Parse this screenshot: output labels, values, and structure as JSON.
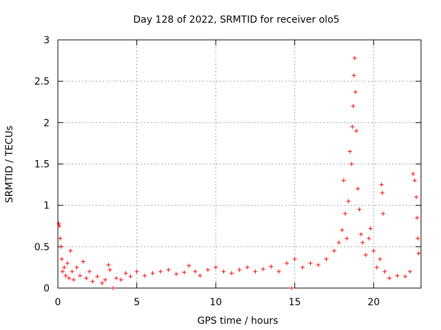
{
  "chart_data": {
    "type": "scatter",
    "title": "Day 128 of 2022, SRMTID for receiver olo5",
    "xlabel": "GPS time / hours",
    "ylabel": "SRMTID / TECUs",
    "xlim": [
      0,
      23
    ],
    "ylim": [
      0,
      3
    ],
    "xticks": [
      0,
      5,
      10,
      15,
      20
    ],
    "xtick_labels": [
      "0",
      "5",
      "10",
      "15",
      "20"
    ],
    "yticks": [
      0,
      0.5,
      1,
      1.5,
      2,
      2.5,
      3
    ],
    "ytick_labels": [
      "0",
      "0.5",
      "1",
      "1.5",
      "2",
      "2.5",
      "3"
    ],
    "grid": true,
    "marker": "+",
    "series": [
      {
        "name": "SRMTID",
        "color": "#ff0000",
        "points": [
          [
            0.05,
            0.78
          ],
          [
            0.1,
            0.75
          ],
          [
            0.15,
            0.6
          ],
          [
            0.2,
            0.5
          ],
          [
            0.25,
            0.35
          ],
          [
            0.3,
            0.2
          ],
          [
            0.4,
            0.25
          ],
          [
            0.5,
            0.15
          ],
          [
            0.6,
            0.3
          ],
          [
            0.7,
            0.12
          ],
          [
            0.8,
            0.45
          ],
          [
            0.9,
            0.2
          ],
          [
            1.0,
            0.1
          ],
          [
            1.2,
            0.25
          ],
          [
            1.4,
            0.15
          ],
          [
            1.6,
            0.32
          ],
          [
            1.8,
            0.12
          ],
          [
            2.0,
            0.2
          ],
          [
            2.2,
            0.08
          ],
          [
            2.5,
            0.14
          ],
          [
            2.8,
            0.06
          ],
          [
            3.0,
            0.1
          ],
          [
            3.2,
            0.28
          ],
          [
            3.3,
            0.22
          ],
          [
            3.5,
            0.0
          ],
          [
            3.7,
            0.12
          ],
          [
            4.0,
            0.1
          ],
          [
            4.3,
            0.18
          ],
          [
            4.6,
            0.14
          ],
          [
            5.0,
            0.2
          ],
          [
            5.5,
            0.15
          ],
          [
            6.0,
            0.18
          ],
          [
            6.5,
            0.2
          ],
          [
            7.0,
            0.22
          ],
          [
            7.5,
            0.17
          ],
          [
            8.0,
            0.19
          ],
          [
            8.3,
            0.27
          ],
          [
            8.7,
            0.2
          ],
          [
            9.0,
            0.15
          ],
          [
            9.5,
            0.22
          ],
          [
            10.0,
            0.25
          ],
          [
            10.5,
            0.2
          ],
          [
            11.0,
            0.18
          ],
          [
            11.5,
            0.22
          ],
          [
            12.0,
            0.25
          ],
          [
            12.5,
            0.2
          ],
          [
            13.0,
            0.23
          ],
          [
            13.5,
            0.26
          ],
          [
            14.0,
            0.2
          ],
          [
            14.5,
            0.3
          ],
          [
            14.8,
            0.0
          ],
          [
            15.0,
            0.35
          ],
          [
            15.5,
            0.25
          ],
          [
            16.0,
            0.3
          ],
          [
            16.5,
            0.28
          ],
          [
            17.0,
            0.35
          ],
          [
            17.5,
            0.45
          ],
          [
            17.8,
            0.55
          ],
          [
            18.0,
            0.7
          ],
          [
            18.1,
            1.3
          ],
          [
            18.2,
            0.9
          ],
          [
            18.3,
            0.6
          ],
          [
            18.4,
            1.05
          ],
          [
            18.5,
            1.65
          ],
          [
            18.6,
            1.5
          ],
          [
            18.65,
            1.95
          ],
          [
            18.7,
            2.2
          ],
          [
            18.75,
            2.57
          ],
          [
            18.8,
            2.78
          ],
          [
            18.85,
            2.37
          ],
          [
            18.9,
            1.9
          ],
          [
            19.0,
            1.2
          ],
          [
            19.1,
            0.95
          ],
          [
            19.2,
            0.65
          ],
          [
            19.3,
            0.55
          ],
          [
            19.5,
            0.4
          ],
          [
            19.7,
            0.6
          ],
          [
            19.8,
            0.72
          ],
          [
            20.0,
            0.45
          ],
          [
            20.2,
            0.25
          ],
          [
            20.4,
            0.35
          ],
          [
            20.5,
            1.25
          ],
          [
            20.55,
            1.15
          ],
          [
            20.6,
            0.9
          ],
          [
            20.7,
            0.2
          ],
          [
            21.0,
            0.12
          ],
          [
            21.5,
            0.15
          ],
          [
            22.0,
            0.14
          ],
          [
            22.3,
            0.2
          ],
          [
            22.5,
            1.38
          ],
          [
            22.6,
            1.3
          ],
          [
            22.7,
            1.1
          ],
          [
            22.75,
            0.85
          ],
          [
            22.8,
            0.6
          ],
          [
            22.85,
            0.42
          ]
        ]
      }
    ]
  }
}
